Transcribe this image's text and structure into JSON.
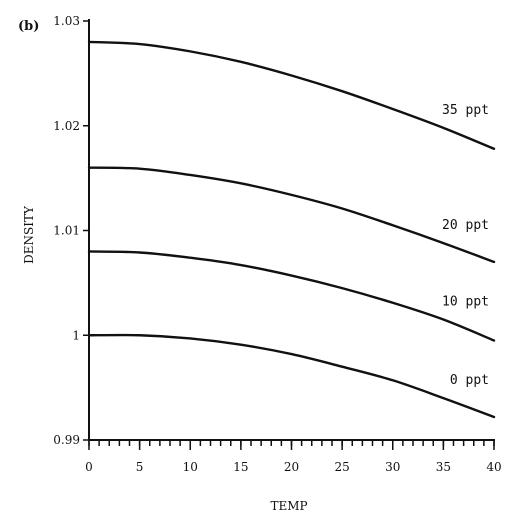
{
  "panel_label": "(b)",
  "chart_data": {
    "type": "line",
    "title": "",
    "xlabel": "TEMP",
    "ylabel": "DENSITY",
    "xlim": [
      0,
      40
    ],
    "ylim": [
      0.99,
      1.03
    ],
    "x_ticks": [
      0,
      5,
      10,
      15,
      20,
      25,
      30,
      35,
      40
    ],
    "x_tick_labels": [
      "0",
      "5",
      "10",
      "15",
      "20",
      "25",
      "30",
      "35",
      "40"
    ],
    "x_minor_step": 1,
    "y_ticks": [
      0.99,
      1.0,
      1.01,
      1.02,
      1.03
    ],
    "y_tick_labels": [
      "0.99",
      "1",
      "1.01",
      "1.02",
      "1.03"
    ],
    "grid": false,
    "legend": "none",
    "x": [
      0,
      5,
      10,
      15,
      20,
      25,
      30,
      35,
      40
    ],
    "series": [
      {
        "name": "0 ppt",
        "values": [
          1.0,
          1.0,
          0.9997,
          0.9991,
          0.9982,
          0.997,
          0.9957,
          0.994,
          0.9922
        ]
      },
      {
        "name": "10 ppt",
        "values": [
          1.008,
          1.0079,
          1.0074,
          1.0067,
          1.0057,
          1.0045,
          1.0031,
          1.0015,
          0.9995
        ]
      },
      {
        "name": "20 ppt",
        "values": [
          1.016,
          1.0159,
          1.0153,
          1.0145,
          1.0134,
          1.0121,
          1.0105,
          1.0088,
          1.007
        ]
      },
      {
        "name": "35 ppt",
        "values": [
          1.028,
          1.0278,
          1.0271,
          1.0261,
          1.0248,
          1.0233,
          1.0216,
          1.0198,
          1.0178
        ]
      }
    ]
  }
}
